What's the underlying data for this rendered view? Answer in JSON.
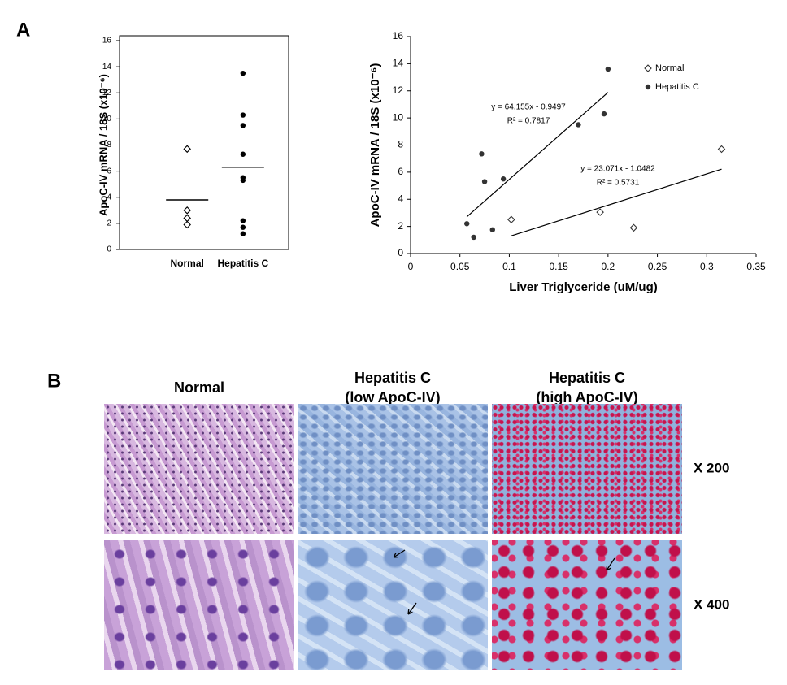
{
  "panels": {
    "a": "A",
    "b": "B"
  },
  "chart_data": [
    {
      "type": "strip",
      "ylabel": "ApoC-IV mRNA / 18S (x10⁻⁶)",
      "categories": [
        "Normal",
        "Hepatitis C"
      ],
      "values": [
        [
          7.7,
          3.0,
          2.4,
          1.9
        ],
        [
          13.5,
          10.3,
          9.5,
          7.3,
          5.5,
          5.3,
          2.2,
          1.7,
          1.2
        ]
      ],
      "markers": [
        "diamond",
        "circle"
      ],
      "color": "#000000",
      "means": [
        3.8,
        6.3
      ],
      "ylim": [
        0,
        16
      ],
      "yticks": [
        0,
        2,
        4,
        6,
        8,
        10,
        12,
        14,
        16
      ]
    },
    {
      "type": "scatter",
      "ylabel": "ApoC-IV mRNA / 18S (x10⁻⁶)",
      "xlabel": "Liver Triglyceride (uM/ug)",
      "series": [
        {
          "name": "Normal",
          "marker": "diamond",
          "color": "#333333",
          "x": [
            0.102,
            0.192,
            0.226,
            0.315
          ],
          "values": [
            2.5,
            3.05,
            1.9,
            7.7
          ],
          "trendline": {
            "slope": 23.071,
            "intercept": -1.0482,
            "equation": "y = 23.071x - 1.0482",
            "r2": "R² = 0.5731"
          }
        },
        {
          "name": "Hepatitis C",
          "marker": "circle",
          "color": "#333333",
          "x": [
            0.057,
            0.064,
            0.072,
            0.075,
            0.083,
            0.094,
            0.17,
            0.196,
            0.2
          ],
          "values": [
            2.2,
            1.2,
            7.35,
            5.3,
            1.75,
            5.5,
            9.5,
            10.3,
            13.6
          ],
          "trendline": {
            "slope": 64.155,
            "intercept": -0.9497,
            "equation": "y = 64.155x - 0.9497",
            "r2": "R² = 0.7817"
          }
        }
      ],
      "xlim": [
        0,
        0.35
      ],
      "xticks": [
        0,
        0.05,
        0.1,
        0.15,
        0.2,
        0.25,
        0.3,
        0.35
      ],
      "ylim": [
        0,
        16
      ],
      "yticks": [
        0,
        2,
        4,
        6,
        8,
        10,
        12,
        14,
        16
      ],
      "legend": "top-right"
    }
  ],
  "micrographs": {
    "columns": [
      [
        "Normal"
      ],
      [
        "Hepatitis C",
        "(low ApoC-IV)"
      ],
      [
        "Hepatitis C",
        "(high ApoC-IV)"
      ]
    ],
    "rows": [
      "X 200",
      "X 400"
    ]
  }
}
